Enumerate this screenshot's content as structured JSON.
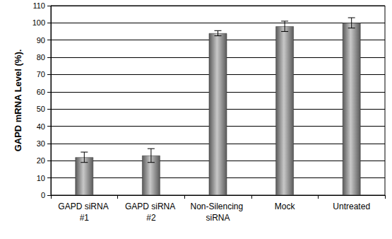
{
  "chart_data": {
    "type": "bar",
    "y_label": "GAPD mRNA Level (%).",
    "categories": [
      "GAPD siRNA #1",
      "GAPD siRNA #2",
      "Non-Silencing siRNA",
      "Mock",
      "Untreated"
    ],
    "values": [
      22,
      23,
      94,
      98,
      100
    ],
    "errors": [
      3,
      4,
      1.5,
      3,
      3
    ],
    "color": "#5a5a5a",
    "ylim": [
      0,
      110
    ],
    "yticks": [
      0,
      10,
      20,
      30,
      40,
      50,
      60,
      70,
      80,
      90,
      100,
      110
    ],
    "grid": true
  }
}
